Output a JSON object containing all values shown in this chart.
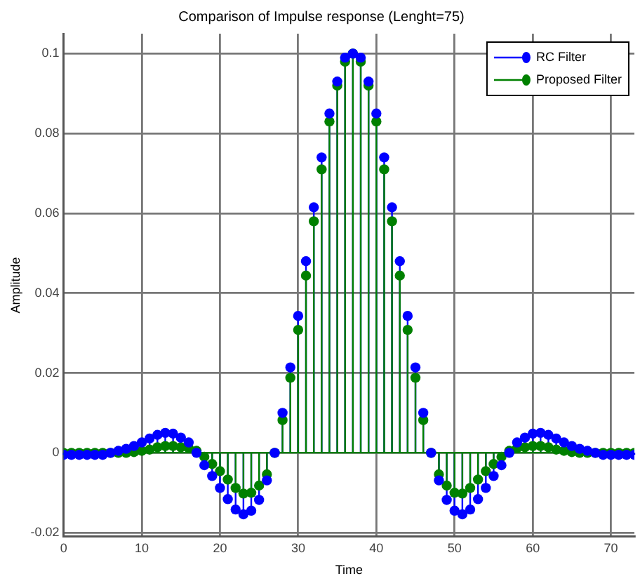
{
  "chart_data": {
    "type": "lollipop",
    "title": "Comparison of Impulse response (Lenght=75)",
    "xlabel": "Time",
    "ylabel": "Amplitude",
    "x": [
      0,
      1,
      2,
      3,
      4,
      5,
      6,
      7,
      8,
      9,
      10,
      11,
      12,
      13,
      14,
      15,
      16,
      17,
      18,
      19,
      20,
      21,
      22,
      23,
      24,
      25,
      26,
      27,
      28,
      29,
      30,
      31,
      32,
      33,
      34,
      35,
      36,
      37,
      38,
      39,
      40,
      41,
      42,
      43,
      44,
      45,
      46,
      47,
      48,
      49,
      50,
      51,
      52,
      53,
      54,
      55,
      56,
      57,
      58,
      59,
      60,
      61,
      62,
      63,
      64,
      65,
      66,
      67,
      68,
      69,
      70,
      71,
      72,
      73
    ],
    "series": [
      {
        "name": "RC Filter",
        "color": "#0000ff",
        "values": [
          -0.0005,
          -0.0005,
          -0.0005,
          -0.0005,
          -0.0005,
          -0.0005,
          0,
          0.0005,
          0.001,
          0.0017,
          0.0026,
          0.0036,
          0.0045,
          0.005,
          0.0048,
          0.0038,
          0.0026,
          0,
          -0.0031,
          -0.0058,
          -0.0088,
          -0.0116,
          -0.0142,
          -0.0154,
          -0.0145,
          -0.0118,
          -0.0069,
          0,
          0.01,
          0.0214,
          0.0343,
          0.048,
          0.0615,
          0.074,
          0.085,
          0.093,
          0.099,
          0.1,
          0.099,
          0.093,
          0.085,
          0.074,
          0.0615,
          0.048,
          0.0343,
          0.0214,
          0.01,
          0,
          -0.0069,
          -0.0118,
          -0.0145,
          -0.0154,
          -0.0142,
          -0.0116,
          -0.0088,
          -0.0058,
          -0.0031,
          0,
          0.0026,
          0.0038,
          0.0048,
          0.005,
          0.0045,
          0.0036,
          0.0026,
          0.0017,
          0.001,
          0.0005,
          0,
          -0.0005,
          -0.0005,
          -0.0005,
          -0.0005,
          -0.0005
        ]
      },
      {
        "name": "Proposed Filter",
        "color": "#008000",
        "values": [
          0,
          0,
          0,
          0,
          0,
          0,
          0,
          0,
          0,
          0.0002,
          0.0005,
          0.0008,
          0.0014,
          0.0017,
          0.0017,
          0.0014,
          0.0012,
          0.0005,
          -0.001,
          -0.0028,
          -0.0046,
          -0.0067,
          -0.0088,
          -0.0102,
          -0.01,
          -0.0082,
          -0.0054,
          0,
          0.0082,
          0.0188,
          0.0308,
          0.0444,
          0.058,
          0.071,
          0.083,
          0.092,
          0.098,
          0.1,
          0.098,
          0.092,
          0.083,
          0.071,
          0.058,
          0.0444,
          0.0308,
          0.0188,
          0.0082,
          0,
          -0.0054,
          -0.0082,
          -0.01,
          -0.0102,
          -0.0088,
          -0.0067,
          -0.0046,
          -0.0028,
          -0.001,
          0.0005,
          0.0012,
          0.0014,
          0.0017,
          0.0017,
          0.0014,
          0.0008,
          0.0005,
          0.0002,
          0,
          0,
          0,
          0,
          0,
          0,
          0,
          0
        ]
      }
    ],
    "xlim": [
      0,
      73
    ],
    "xticks": [
      0,
      10,
      20,
      30,
      40,
      50,
      60,
      70
    ],
    "ylim": [
      -0.021,
      0.105
    ],
    "yticks": [
      -0.02,
      0,
      0.02,
      0.04,
      0.06,
      0.08,
      0.1
    ],
    "ref_lines": [
      {
        "axis": "y",
        "value": 0,
        "color": "#008000"
      }
    ],
    "grid": true,
    "legend": "top right",
    "marker": "circle"
  }
}
